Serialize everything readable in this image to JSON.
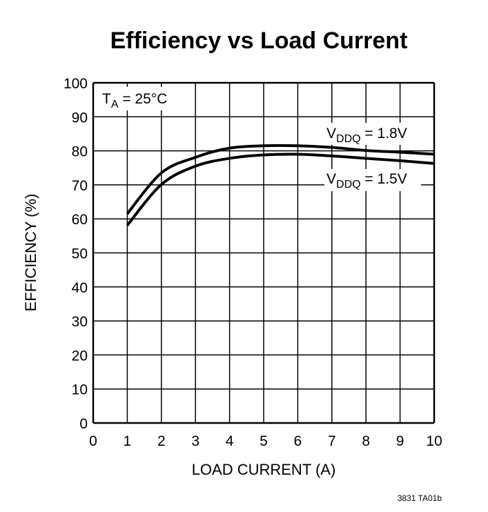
{
  "chart_data": {
    "type": "line",
    "title": "Efficiency vs Load Current",
    "xlabel": "LOAD CURRENT (A)",
    "ylabel": "EFFICIENCY (%)",
    "xlim": [
      0,
      10
    ],
    "ylim": [
      0,
      100
    ],
    "xticks": [
      "0",
      "1",
      "2",
      "3",
      "4",
      "5",
      "6",
      "7",
      "8",
      "9",
      "10"
    ],
    "yticks": [
      "0",
      "10",
      "20",
      "30",
      "40",
      "50",
      "60",
      "70",
      "80",
      "90",
      "100"
    ],
    "grid": true,
    "annotation": {
      "main": "T",
      "sub": "A",
      "rest": " = 25°C"
    },
    "series": [
      {
        "name": "VDDQ = 1.8V",
        "label_main": "V",
        "label_sub": "DDQ",
        "label_rest": " = 1.8V",
        "x": [
          1,
          2,
          3,
          4,
          5,
          6,
          7,
          8,
          9,
          10
        ],
        "y": [
          61.5,
          73.5,
          78.1,
          80.8,
          81.5,
          81.5,
          81.0,
          80.1,
          79.6,
          79.0
        ]
      },
      {
        "name": "VDDQ = 1.5V",
        "label_main": "V",
        "label_sub": "DDQ",
        "label_rest": " = 1.5V",
        "x": [
          1,
          2,
          3,
          4,
          5,
          6,
          7,
          8,
          9,
          10
        ],
        "y": [
          58.1,
          70.1,
          75.5,
          77.8,
          78.8,
          79.0,
          78.5,
          77.8,
          77.1,
          76.3
        ]
      }
    ],
    "footnote": "3831 TA01b",
    "line_color": "#000000"
  }
}
